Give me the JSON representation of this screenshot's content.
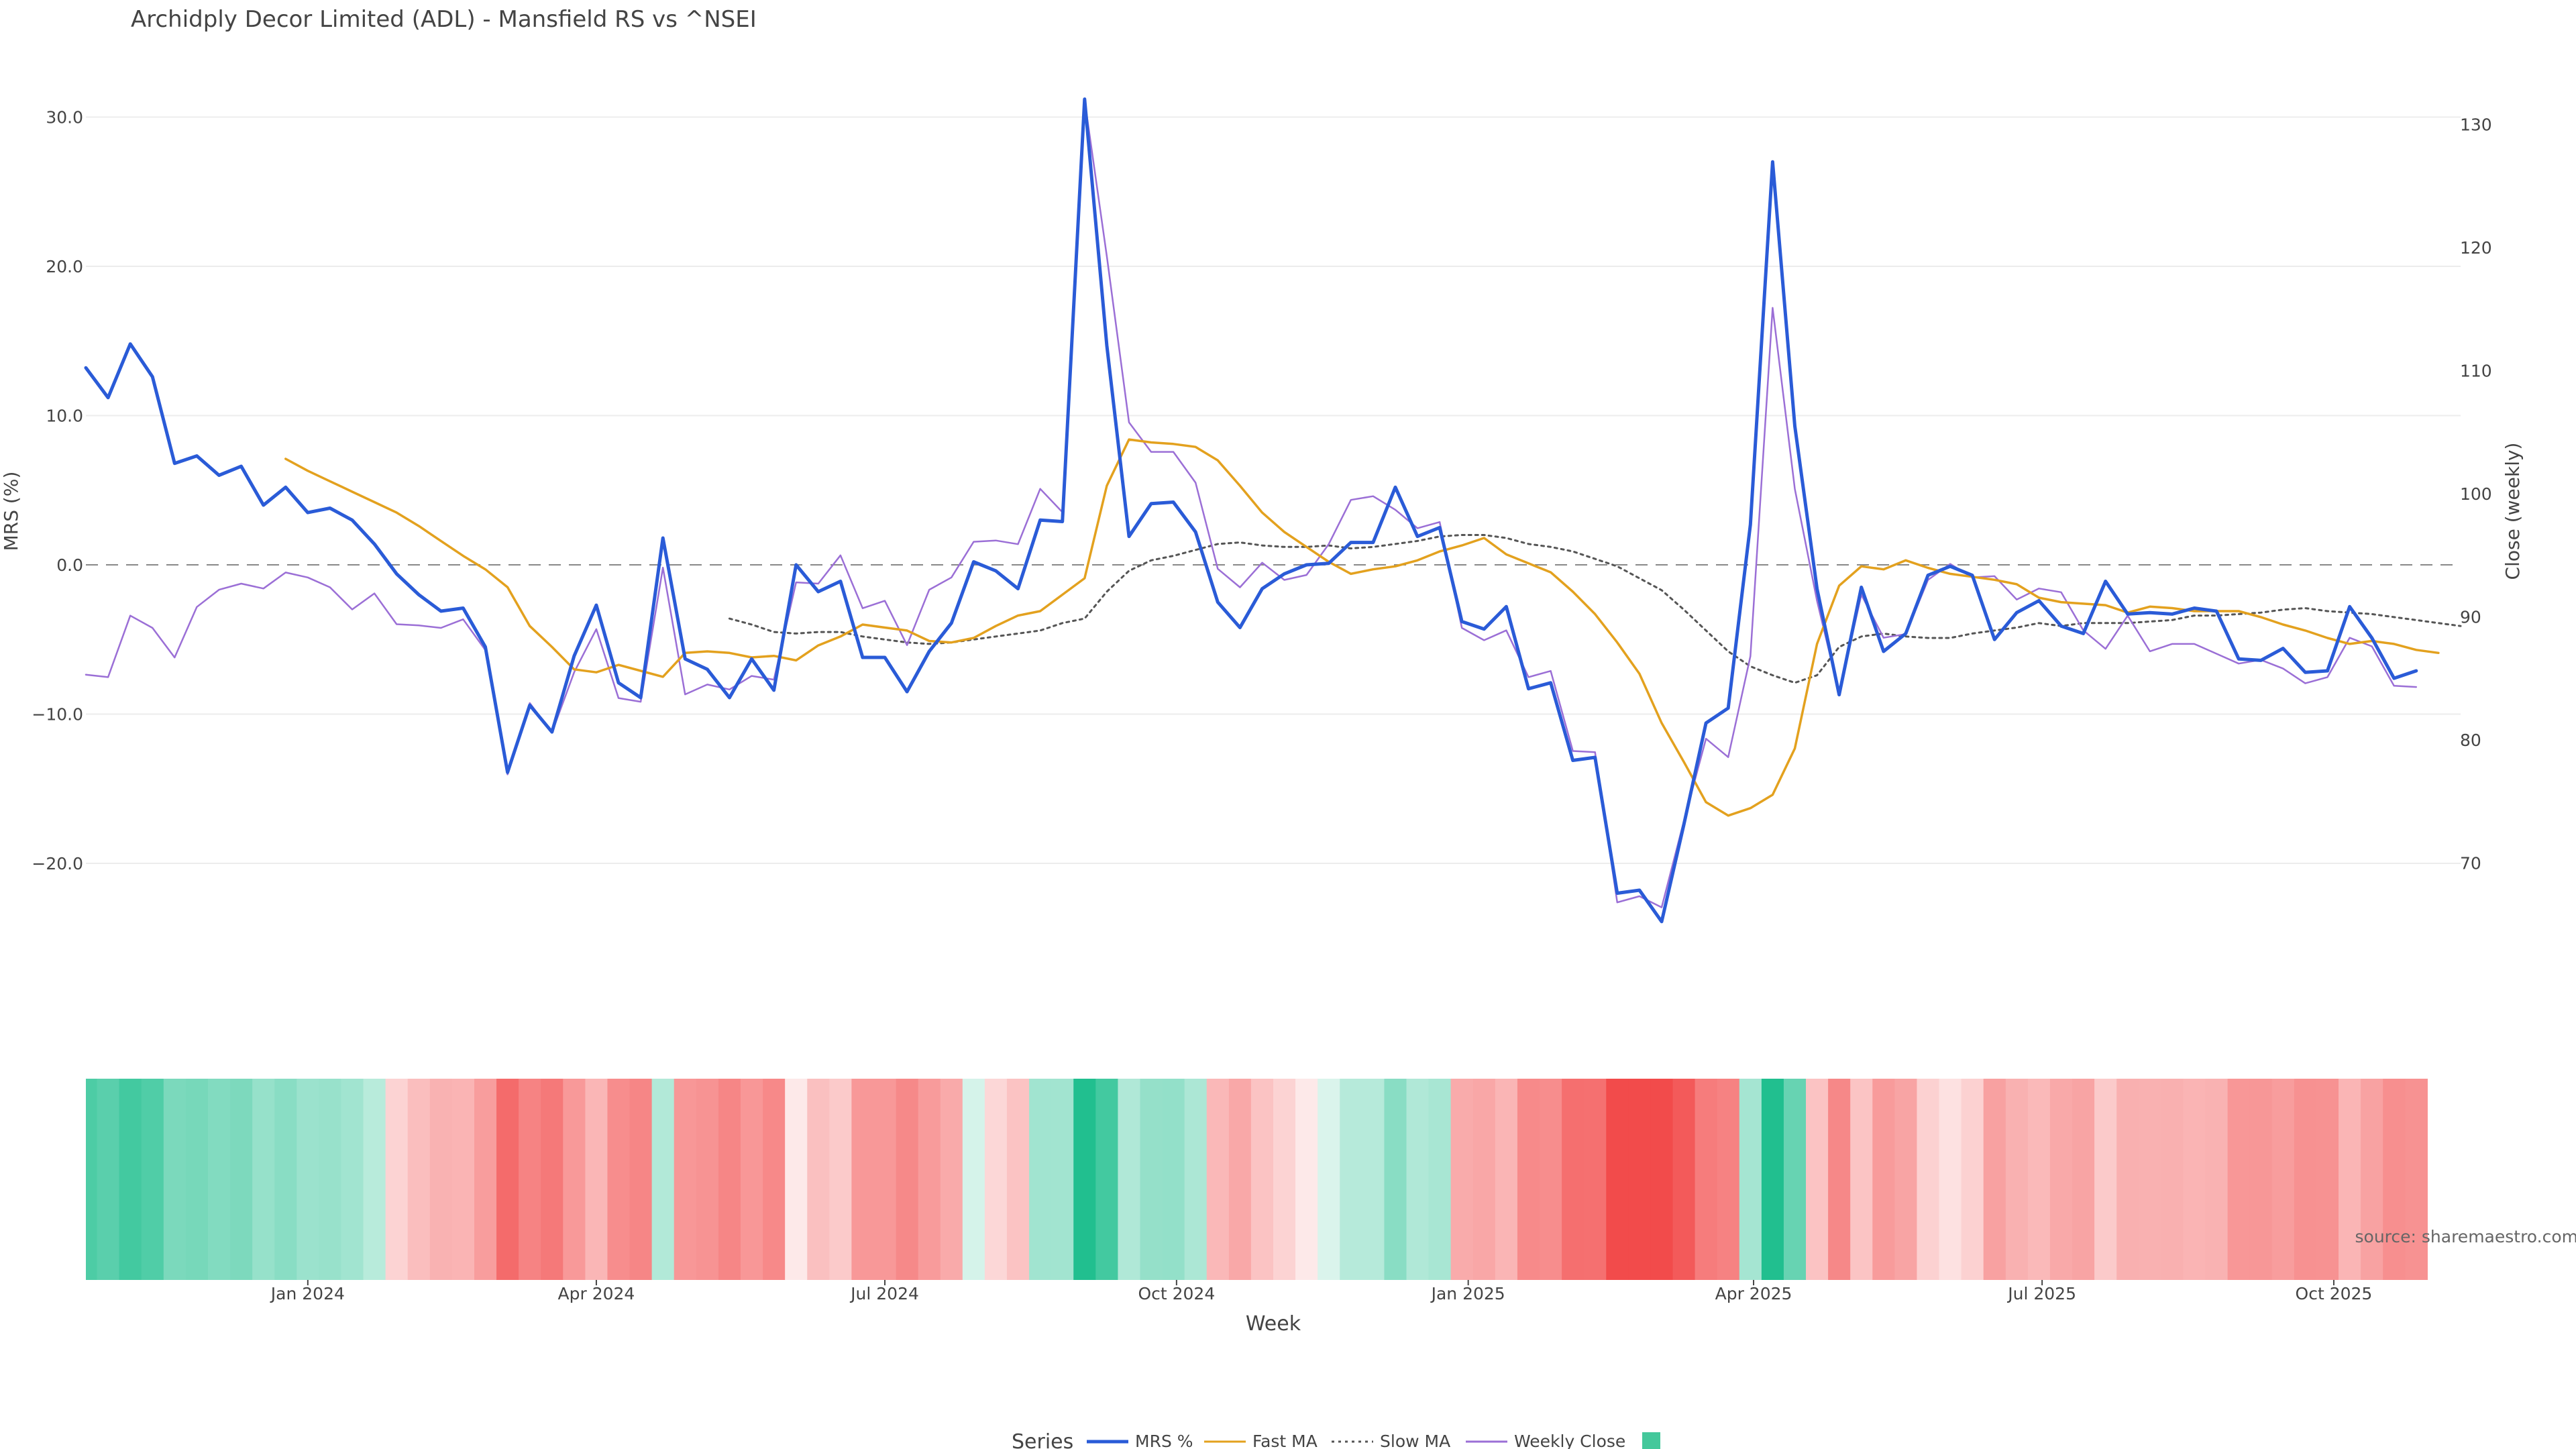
{
  "chart_data": {
    "type": "line",
    "title": "Archidply Decor Limited (ADL) - Mansfield RS vs ^NSEI",
    "xlabel": "Week",
    "ylabel_left": "MRS (%)",
    "ylabel_right": "Close (weekly)",
    "x_range": [
      "2023-10-23",
      "2025-11-10"
    ],
    "ylim_left": [
      -30,
      33
    ],
    "ylim_right": [
      60,
      132
    ],
    "yticks_left": [
      30,
      20,
      10,
      0,
      -10,
      -20
    ],
    "ytick_labels_left": [
      "30.0",
      "20.0",
      "10.0",
      "0.0",
      "−10.0",
      "−20.0"
    ],
    "yticks_right": [
      130,
      120,
      110,
      100,
      90,
      80,
      70
    ],
    "ytick_labels_right": [
      "130",
      "120",
      "110",
      "100",
      "90",
      "80",
      "70"
    ],
    "xticks": [
      "2024-01-01",
      "2024-04-01",
      "2024-07-01",
      "2024-10-01",
      "2025-01-01",
      "2025-04-01",
      "2025-07-01",
      "2025-10-01"
    ],
    "xtick_labels": [
      "Jan 2024",
      "Apr 2024",
      "Jul 2024",
      "Oct 2024",
      "Jan 2025",
      "Apr 2025",
      "Jul 2025",
      "Oct 2025"
    ],
    "zero_line": 0,
    "grid": true,
    "legend_position": "bottom",
    "legend_title": "Series",
    "weeks": {
      "start": "2023-10-23",
      "step_days": 7
    },
    "series": [
      {
        "name": "MRS %",
        "color": "#2a5bd7",
        "style": "solid",
        "axis": "left",
        "start_index": 0,
        "values": [
          13.2,
          11.2,
          14.8,
          12.6,
          6.8,
          7.3,
          6.0,
          6.6,
          4.0,
          5.2,
          3.5,
          3.8,
          3.0,
          1.4,
          -0.6,
          -2.0,
          -3.1,
          -2.9,
          -5.5,
          -13.9,
          -9.4,
          -11.2,
          -6.1,
          -2.7,
          -7.9,
          -8.9,
          1.8,
          -6.3,
          -7.0,
          -8.9,
          -6.3,
          -8.4,
          0.0,
          -1.8,
          -1.1,
          -6.2,
          -6.2,
          -8.5,
          -5.8,
          -3.9,
          0.2,
          -0.4,
          -1.6,
          3.0,
          2.9,
          31.2,
          14.7,
          1.9,
          4.1,
          4.2,
          2.2,
          -2.5,
          -4.2,
          -1.6,
          -0.6,
          0.0,
          0.1,
          1.5,
          1.5,
          5.2,
          1.9,
          2.5,
          -3.8,
          -4.3,
          -2.8,
          -8.3,
          -7.9,
          -13.1,
          -12.9,
          -22.0,
          -21.8,
          -23.9,
          -17.4,
          -10.6,
          -9.6,
          2.7,
          27.0,
          9.3,
          -1.6,
          -8.7,
          -1.5,
          -5.8,
          -4.6,
          -0.7,
          -0.1,
          -0.7,
          -5.0,
          -3.2,
          -2.4,
          -4.1,
          -4.6,
          -1.1,
          -3.3,
          -3.2,
          -3.3,
          -2.9,
          -3.1,
          -6.3,
          -6.4,
          -5.6,
          -7.2,
          -7.1,
          -2.8,
          -4.9,
          -7.6,
          -7.1
        ]
      },
      {
        "name": "Fast MA",
        "color": "#e3a11e",
        "style": "solid",
        "axis": "left",
        "start_index": 9,
        "values": [
          7.1,
          6.3,
          5.6,
          4.9,
          4.2,
          3.5,
          2.6,
          1.6,
          0.6,
          -0.3,
          -1.5,
          -4.1,
          -5.5,
          -7.0,
          -7.2,
          -6.7,
          -7.1,
          -7.5,
          -5.9,
          -5.8,
          -5.9,
          -6.2,
          -6.1,
          -6.4,
          -5.4,
          -4.8,
          -4.0,
          -4.2,
          -4.4,
          -5.1,
          -5.2,
          -4.9,
          -4.1,
          -3.4,
          -3.1,
          -2.0,
          -0.9,
          5.3,
          8.4,
          8.2,
          8.1,
          7.9,
          7.0,
          5.3,
          3.5,
          2.2,
          1.2,
          0.2,
          -0.6,
          -0.3,
          -0.1,
          0.3,
          0.9,
          1.3,
          1.8,
          0.7,
          0.1,
          -0.5,
          -1.8,
          -3.3,
          -5.2,
          -7.3,
          -10.6,
          -13.2,
          -15.9,
          -16.8,
          -16.3,
          -15.4,
          -12.3,
          -5.3,
          -1.4,
          -0.1,
          -0.3,
          0.3,
          -0.2,
          -0.6,
          -0.8,
          -1.0,
          -1.3,
          -2.2,
          -2.5,
          -2.6,
          -2.7,
          -3.2,
          -2.8,
          -2.9,
          -3.1,
          -3.1,
          -3.1,
          -3.5,
          -4.0,
          -4.4,
          -4.9,
          -5.3,
          -5.1,
          -5.3,
          -5.7,
          -5.9
        ]
      },
      {
        "name": "Slow MA",
        "color": "#555555",
        "style": "dotted",
        "axis": "left",
        "start_index": 29,
        "values": [
          -3.6,
          -4.0,
          -4.5,
          -4.6,
          -4.5,
          -4.5,
          -4.8,
          -5.0,
          -5.2,
          -5.3,
          -5.2,
          -5.0,
          -4.8,
          -4.6,
          -4.4,
          -3.9,
          -3.6,
          -1.8,
          -0.4,
          0.3,
          0.6,
          1.0,
          1.4,
          1.5,
          1.3,
          1.2,
          1.2,
          1.3,
          1.1,
          1.2,
          1.4,
          1.6,
          1.9,
          2.0,
          2.0,
          1.8,
          1.4,
          1.2,
          0.9,
          0.4,
          -0.1,
          -0.9,
          -1.7,
          -3.0,
          -4.4,
          -5.8,
          -6.8,
          -7.4,
          -7.9,
          -7.4,
          -5.5,
          -4.8,
          -4.6,
          -4.8,
          -4.9,
          -4.9,
          -4.6,
          -4.4,
          -4.2,
          -3.9,
          -4.1,
          -3.9,
          -3.9,
          -3.9,
          -3.8,
          -3.7,
          -3.4,
          -3.4,
          -3.3,
          -3.2,
          -3.0,
          -2.9,
          -3.1,
          -3.2,
          -3.3,
          -3.5,
          -3.7,
          -3.9,
          -4.1
        ]
      },
      {
        "name": "Weekly Close",
        "color": "#9b6fd6",
        "style": "solid",
        "axis": "right",
        "start_index": 0,
        "values": [
          85.3,
          85.1,
          90.1,
          89.1,
          86.7,
          90.8,
          92.2,
          92.7,
          92.3,
          93.6,
          93.2,
          92.4,
          90.6,
          91.9,
          89.4,
          89.3,
          89.1,
          89.8,
          87.3,
          77.2,
          83.0,
          80.6,
          85.5,
          89.0,
          83.4,
          83.1,
          94.0,
          83.7,
          84.5,
          84.1,
          85.2,
          84.9,
          92.8,
          92.7,
          95.0,
          90.7,
          91.3,
          87.7,
          92.2,
          93.2,
          96.1,
          96.2,
          95.9,
          100.4,
          98.5,
          132.0,
          119.3,
          105.8,
          103.4,
          103.4,
          100.9,
          93.9,
          92.4,
          94.4,
          93.0,
          93.4,
          95.9,
          99.5,
          99.8,
          98.7,
          97.2,
          97.7,
          89.1,
          88.1,
          88.9,
          85.1,
          85.6,
          79.1,
          79.0,
          66.8,
          67.3,
          66.4,
          73.4,
          80.1,
          78.6,
          86.8,
          115.1,
          100.4,
          91.3,
          83.8,
          91.8,
          88.3,
          88.6,
          93.0,
          94.3,
          93.2,
          93.3,
          91.4,
          92.3,
          92.0,
          88.9,
          87.4,
          90.1,
          87.2,
          87.8,
          87.8,
          87.0,
          86.2,
          86.5,
          85.8,
          84.6,
          85.1,
          88.3,
          87.6,
          84.4,
          84.3
        ]
      }
    ],
    "strength_band": {
      "description_colors": [
        "#21bf8f",
        "#f24b4b"
      ],
      "values": [
        -13.2,
        -11.2,
        -14.8,
        -12.6,
        -6.8,
        -7.3,
        -6.0,
        -6.6,
        -4.0,
        -5.2,
        -3.5,
        -3.8,
        -3.0,
        -1.4,
        0.6,
        2.0,
        3.1,
        2.9,
        5.5,
        13.9,
        9.4,
        11.2,
        6.1,
        2.7,
        7.9,
        8.9,
        -1.8,
        6.3,
        7.0,
        8.9,
        6.3,
        8.4,
        0.0,
        1.8,
        1.1,
        6.2,
        6.2,
        8.5,
        5.8,
        3.9,
        -0.2,
        0.4,
        1.6,
        -3.0,
        -2.9,
        -31.2,
        -14.7,
        -1.9,
        -4.1,
        -4.2,
        -2.2,
        2.5,
        4.2,
        1.6,
        0.6,
        0.0,
        -0.1,
        -1.5,
        -1.5,
        -5.2,
        -1.9,
        -2.5,
        3.8,
        4.3,
        2.8,
        8.3,
        7.9,
        13.1,
        12.9,
        22.0,
        21.8,
        23.9,
        17.4,
        10.6,
        9.6,
        -2.7,
        -27.0,
        -9.3,
        1.6,
        8.7,
        1.5,
        5.8,
        4.6,
        0.7,
        0.1,
        0.7,
        5.0,
        3.2,
        2.4,
        4.1,
        4.6,
        1.1,
        3.3,
        3.2,
        3.3,
        2.9,
        3.1,
        6.3,
        6.4,
        5.6,
        7.2,
        7.1,
        2.8,
        4.9,
        7.6,
        7.1
      ]
    },
    "legend_swatch_color": "#44c89b",
    "annotation": "source: sharemaestro.com"
  }
}
